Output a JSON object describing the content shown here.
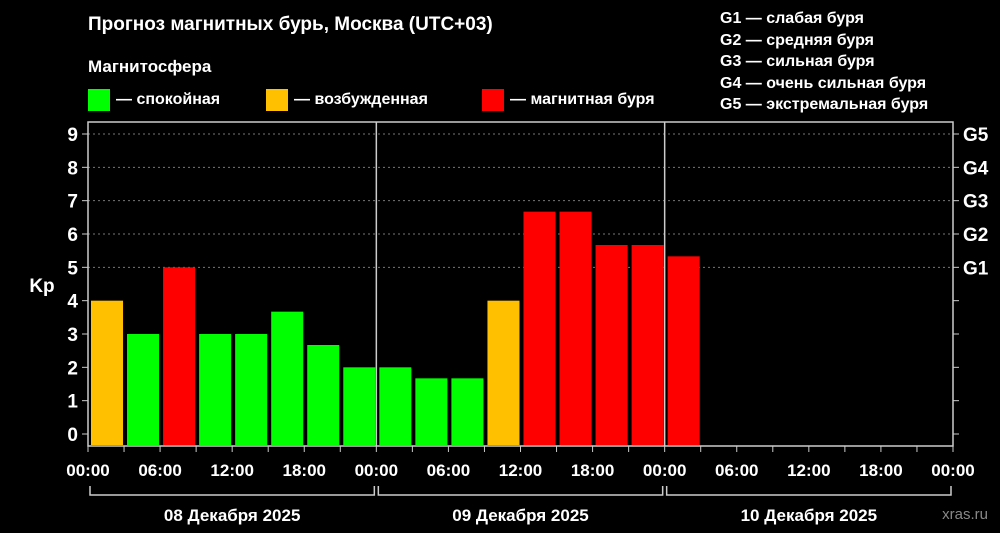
{
  "title": "Прогноз магнитных бурь, Москва (UTC+03)",
  "legend": {
    "title": "Магнитосфера",
    "items": [
      {
        "label": "— спокойная",
        "color": "#00ff00"
      },
      {
        "label": "— возбужденная",
        "color": "#ffc000"
      },
      {
        "label": "— магнитная буря",
        "color": "#ff0000"
      }
    ]
  },
  "g_scale": [
    "G1 — слабая буря",
    "G2 — средняя буря",
    "G3 — сильная буря",
    "G4 — очень сильная буря",
    "G5 — экстремальная буря"
  ],
  "watermark": "xras.ru",
  "chart_data": {
    "type": "bar",
    "ylabel": "Kp",
    "ylim": [
      0,
      9
    ],
    "yticks": [
      "0",
      "1",
      "2",
      "3",
      "4",
      "5",
      "6",
      "7",
      "8",
      "9"
    ],
    "right_ticks": [
      {
        "value": 5,
        "label": "G1"
      },
      {
        "value": 6,
        "label": "G2"
      },
      {
        "value": 7,
        "label": "G3"
      },
      {
        "value": 8,
        "label": "G4"
      },
      {
        "value": 9,
        "label": "G5"
      }
    ],
    "grid": "dotted horizontal at 5-9",
    "xtick_labels": [
      "00:00",
      "06:00",
      "12:00",
      "18:00",
      "00:00",
      "06:00",
      "12:00",
      "18:00",
      "00:00",
      "06:00",
      "12:00",
      "18:00",
      "00:00"
    ],
    "days": [
      "08 Декабря 2025",
      "09 Декабря 2025",
      "10 Декабря 2025"
    ],
    "interval_hours": 3,
    "values": [
      4,
      3,
      5,
      3,
      3,
      3.67,
      2.67,
      2,
      2,
      1.67,
      1.67,
      4,
      6.67,
      6.67,
      5.67,
      5.67,
      5.33
    ],
    "colors": {
      "quiet": "#00ff00",
      "unsettled": "#ffc000",
      "storm": "#ff0000"
    }
  }
}
